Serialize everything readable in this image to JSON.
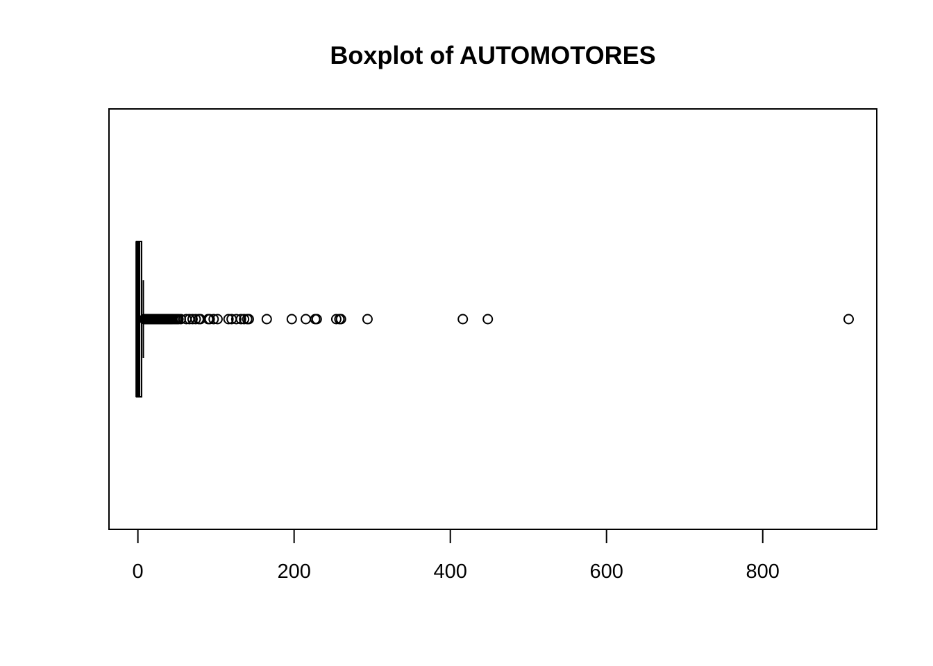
{
  "chart_data": {
    "type": "boxplot",
    "orientation": "horizontal",
    "title": "Boxplot of AUTOMOTORES",
    "xlabel": "",
    "ylabel": "",
    "xlim": [
      -37,
      946
    ],
    "ticks": [
      0,
      200,
      400,
      600,
      800
    ],
    "grid": false,
    "legend": "none",
    "box": {
      "whisker_low": 0,
      "q1": 0,
      "median": 0,
      "q3": 3,
      "whisker_high": 7
    },
    "outliers": [
      8,
      9,
      10,
      11,
      12,
      13,
      14,
      15,
      16,
      17,
      18,
      19,
      20,
      21,
      22,
      23,
      24,
      25,
      26,
      27,
      28,
      29,
      30,
      31,
      32,
      33,
      34,
      35,
      36,
      37,
      38,
      39,
      40,
      41,
      42,
      43,
      44,
      46,
      48,
      50,
      52,
      55,
      62,
      66,
      70,
      74,
      78,
      80,
      90,
      92,
      97,
      102,
      116,
      120,
      126,
      132,
      136,
      140,
      142,
      165,
      197,
      215,
      227,
      229,
      254,
      258,
      260,
      294,
      416,
      448,
      910
    ],
    "colors": {
      "ink": "#000000",
      "background": "#ffffff"
    }
  }
}
